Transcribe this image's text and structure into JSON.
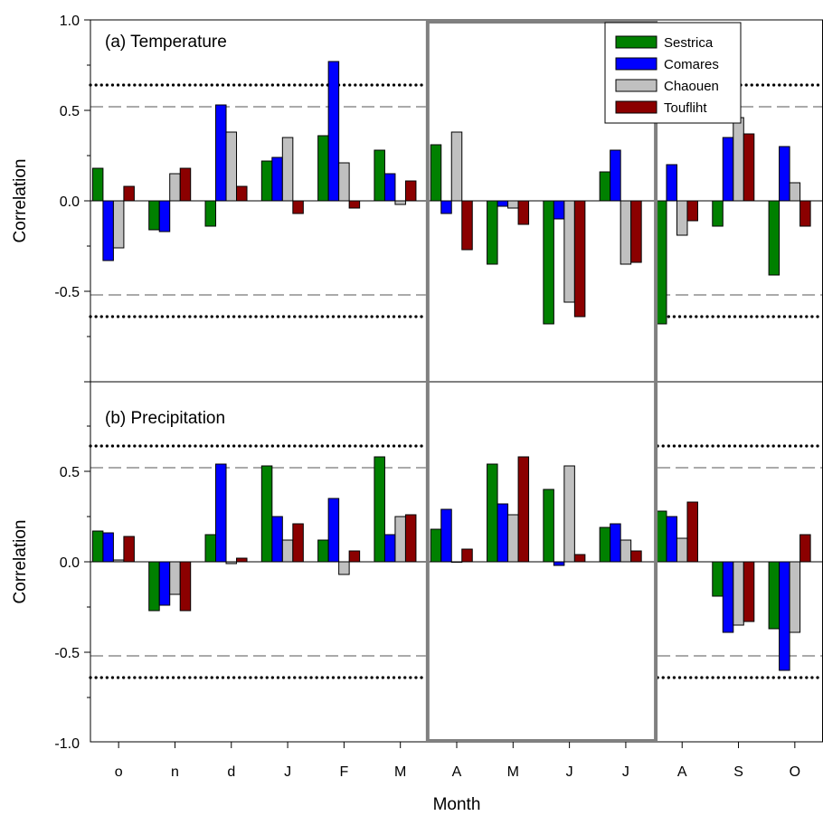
{
  "chart_data": {
    "type": "bar",
    "xlabel": "Month",
    "categories": [
      "o",
      "n",
      "d",
      "J",
      "F",
      "M",
      "A",
      "M",
      "J",
      "J",
      "A",
      "S",
      "O"
    ],
    "series_names": [
      "Sestrica",
      "Comares",
      "Chaouen",
      "Toufliht"
    ],
    "colors": [
      "#008000",
      "#0000ff",
      "#c0c0c0",
      "#8b0000"
    ],
    "legend_position": "top-right",
    "highlight_range": [
      "A",
      "J"
    ],
    "panels": [
      {
        "title": "(a) Temperature",
        "ylabel": "Correlation",
        "ylim": [
          -1.0,
          1.0
        ],
        "yticks": [
          "1.0",
          "0.5",
          "0.0",
          "-0.5"
        ],
        "dotted_thresholds": [
          0.64,
          -0.64
        ],
        "dashed_thresholds": [
          0.52,
          -0.52
        ],
        "series": [
          {
            "name": "Sestrica",
            "values": [
              0.18,
              -0.16,
              -0.14,
              0.22,
              0.36,
              0.28,
              0.31,
              -0.35,
              -0.68,
              0.16,
              -0.68,
              -0.14,
              -0.41
            ]
          },
          {
            "name": "Comares",
            "values": [
              -0.33,
              -0.17,
              0.53,
              0.24,
              0.77,
              0.15,
              -0.07,
              -0.03,
              -0.1,
              0.28,
              0.2,
              0.35,
              0.3
            ]
          },
          {
            "name": "Chaouen",
            "values": [
              -0.26,
              0.15,
              0.38,
              0.35,
              0.21,
              -0.02,
              0.38,
              -0.04,
              -0.56,
              -0.35,
              -0.19,
              0.46,
              0.1
            ]
          },
          {
            "name": "Toufliht",
            "values": [
              0.08,
              0.18,
              0.08,
              -0.07,
              -0.04,
              0.11,
              -0.27,
              -0.13,
              -0.64,
              -0.34,
              -0.11,
              0.37,
              -0.14
            ]
          }
        ]
      },
      {
        "title": "(b) Precipitation",
        "ylabel": "Correlation",
        "ylim": [
          -1.0,
          1.0
        ],
        "yticks": [
          "0.5",
          "0.0",
          "-0.5",
          "-1.0"
        ],
        "dotted_thresholds": [
          0.64,
          -0.64
        ],
        "dashed_thresholds": [
          0.52,
          -0.52
        ],
        "series": [
          {
            "name": "Sestrica",
            "values": [
              0.17,
              -0.27,
              0.15,
              0.53,
              0.12,
              0.58,
              0.18,
              0.54,
              0.4,
              0.19,
              0.28,
              -0.19,
              -0.37
            ]
          },
          {
            "name": "Comares",
            "values": [
              0.16,
              -0.24,
              0.54,
              0.25,
              0.35,
              0.15,
              0.29,
              0.32,
              -0.02,
              0.21,
              0.25,
              -0.39,
              -0.6
            ]
          },
          {
            "name": "Chaouen",
            "values": [
              0.01,
              -0.18,
              -0.01,
              0.12,
              -0.07,
              0.25,
              0.0,
              0.26,
              0.53,
              0.12,
              0.13,
              -0.35,
              -0.39
            ]
          },
          {
            "name": "Toufliht",
            "values": [
              0.14,
              -0.27,
              0.02,
              0.21,
              0.06,
              0.26,
              0.07,
              0.58,
              0.04,
              0.06,
              0.33,
              -0.33,
              0.15
            ]
          }
        ]
      }
    ]
  }
}
